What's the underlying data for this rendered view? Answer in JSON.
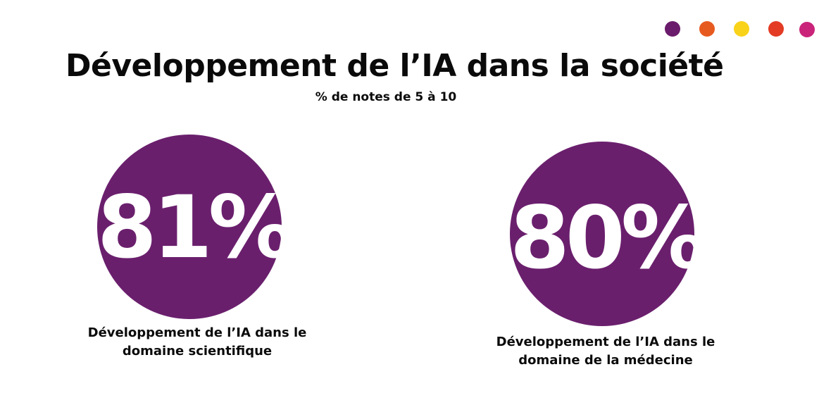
{
  "header": {
    "title": "Développement de l’IA dans la société",
    "subtitle": "% de notes de 5 à 10"
  },
  "decor_dots": [
    "#6a1b6b",
    "#e75a1f",
    "#f9d21a",
    "#e33b24",
    "#c9247a"
  ],
  "accent_color": "#6a1f6d",
  "chart_data": {
    "type": "kpi",
    "title": "Développement de l’IA dans la société",
    "subtitle": "% de notes de 5 à 10",
    "categories": [
      "Développement de l’IA dans le domaine scientifique",
      "Développement de l’IA dans le domaine de la médecine"
    ],
    "values": [
      81,
      80
    ],
    "value_labels": [
      "81%",
      "80%"
    ],
    "unit": "%"
  },
  "kpis": [
    {
      "value": "81%",
      "label_line1": "Développement de l’IA dans le",
      "label_line2": "domaine scientifique"
    },
    {
      "value": "80%",
      "label_line1": "Développement de l’IA dans le",
      "label_line2": "domaine de la médecine"
    }
  ]
}
